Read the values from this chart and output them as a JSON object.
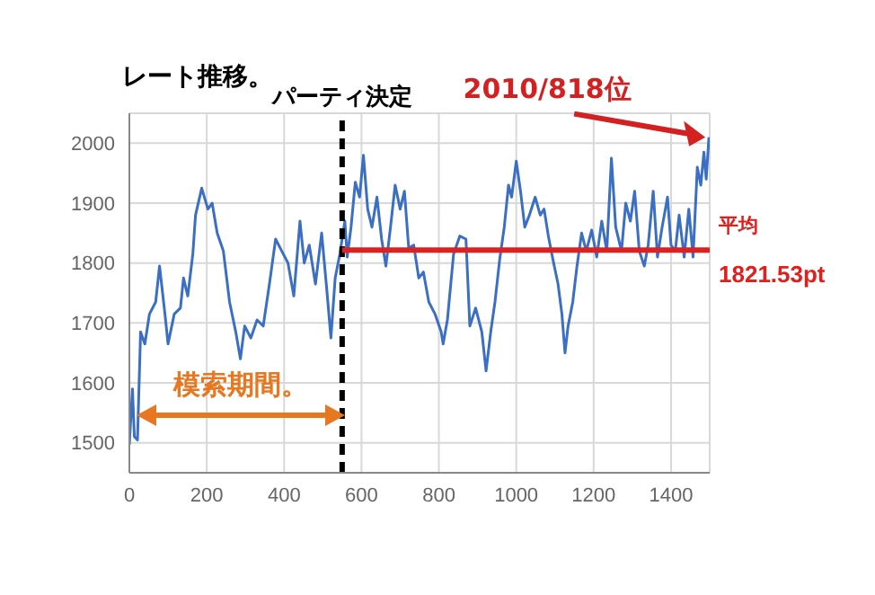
{
  "chart_data": {
    "type": "line",
    "title": "レート推移。",
    "x": [
      0,
      8,
      13,
      21,
      29,
      40,
      52,
      68,
      78,
      92,
      100,
      116,
      132,
      140,
      151,
      164,
      171,
      187,
      203,
      214,
      227,
      243,
      259,
      275,
      287,
      298,
      314,
      330,
      346,
      362,
      378,
      394,
      410,
      425,
      441,
      452,
      465,
      481,
      497,
      509,
      521,
      532,
      544,
      557,
      563,
      573,
      584,
      595,
      605,
      616,
      627,
      640,
      652,
      663,
      675,
      687,
      700,
      711,
      722,
      735,
      748,
      760,
      774,
      790,
      806,
      811,
      822,
      838,
      854,
      870,
      880,
      895,
      911,
      922,
      934,
      945,
      957,
      969,
      980,
      988,
      1000,
      1011,
      1022,
      1034,
      1049,
      1062,
      1072,
      1083,
      1095,
      1108,
      1118,
      1126,
      1134,
      1146,
      1157,
      1169,
      1181,
      1195,
      1208,
      1221,
      1234,
      1246,
      1257,
      1272,
      1283,
      1295,
      1306,
      1318,
      1331,
      1341,
      1354,
      1365,
      1377,
      1391,
      1400,
      1411,
      1421,
      1434,
      1446,
      1457,
      1468,
      1477,
      1485,
      1491,
      1498
    ],
    "series": [
      {
        "color": "#3a6fc4",
        "values": [
          1497,
          1590,
          1510,
          1505,
          1685,
          1665,
          1715,
          1735,
          1795,
          1715,
          1665,
          1715,
          1725,
          1775,
          1745,
          1815,
          1880,
          1925,
          1890,
          1900,
          1850,
          1820,
          1735,
          1685,
          1640,
          1695,
          1675,
          1705,
          1695,
          1765,
          1840,
          1820,
          1800,
          1745,
          1870,
          1800,
          1830,
          1765,
          1850,
          1765,
          1675,
          1775,
          1815,
          1870,
          1810,
          1860,
          1935,
          1910,
          1980,
          1890,
          1860,
          1910,
          1840,
          1795,
          1860,
          1930,
          1890,
          1920,
          1825,
          1830,
          1775,
          1785,
          1735,
          1715,
          1685,
          1665,
          1705,
          1815,
          1845,
          1840,
          1695,
          1725,
          1685,
          1620,
          1685,
          1735,
          1805,
          1860,
          1930,
          1910,
          1970,
          1920,
          1860,
          1880,
          1910,
          1880,
          1890,
          1845,
          1805,
          1765,
          1715,
          1650,
          1695,
          1735,
          1795,
          1850,
          1820,
          1855,
          1810,
          1870,
          1820,
          1975,
          1860,
          1820,
          1900,
          1870,
          1920,
          1820,
          1795,
          1830,
          1920,
          1810,
          1860,
          1910,
          1830,
          1820,
          1880,
          1810,
          1890,
          1810,
          1960,
          1930,
          1985,
          1940,
          2010
        ]
      }
    ],
    "xlim": [
      0,
      1500
    ],
    "xticks": [
      0,
      200,
      400,
      600,
      800,
      1000,
      1200,
      1400
    ],
    "ylim": [
      1450,
      2050
    ],
    "yticks": [
      1500,
      1600,
      1700,
      1800,
      1900,
      2000
    ],
    "grid": true,
    "legend": false,
    "ref_lines": [
      {
        "axis": "x",
        "value": 550,
        "label": "パーティ決定",
        "color": "#000000",
        "line_style": "dashed"
      },
      {
        "axis": "y",
        "value": 1821.53,
        "label": "平均 1821.53pt",
        "color": "#e0201e",
        "line_style": "solid"
      }
    ],
    "annotations": [
      {
        "text": "2010/818位",
        "x": 1498,
        "y": 2010
      },
      "模索期間。"
    ]
  }
}
